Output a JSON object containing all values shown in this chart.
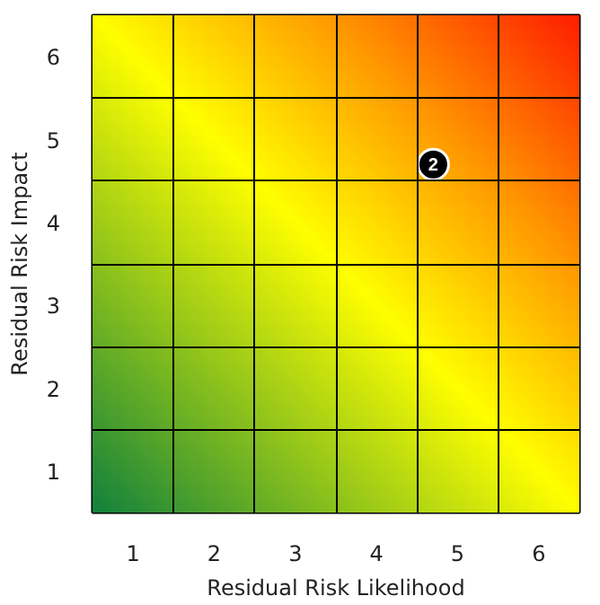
{
  "chart_data": {
    "type": "scatter",
    "xlabel": "Residual Risk Likelihood",
    "ylabel": "Residual Risk Impact",
    "x": [
      4.7
    ],
    "values": [
      4.7
    ],
    "color": "#000000",
    "marker": "circle",
    "annotations": [
      {
        "text": "2",
        "x": 4.7,
        "y": 4.7
      }
    ],
    "xlim": [
      0.5,
      6.5
    ],
    "ylim": [
      0.5,
      6.5
    ],
    "xticks": [
      1,
      2,
      3,
      4,
      5,
      6
    ],
    "yticks": [
      1,
      2,
      3,
      4,
      5,
      6
    ],
    "grid": true
  }
}
